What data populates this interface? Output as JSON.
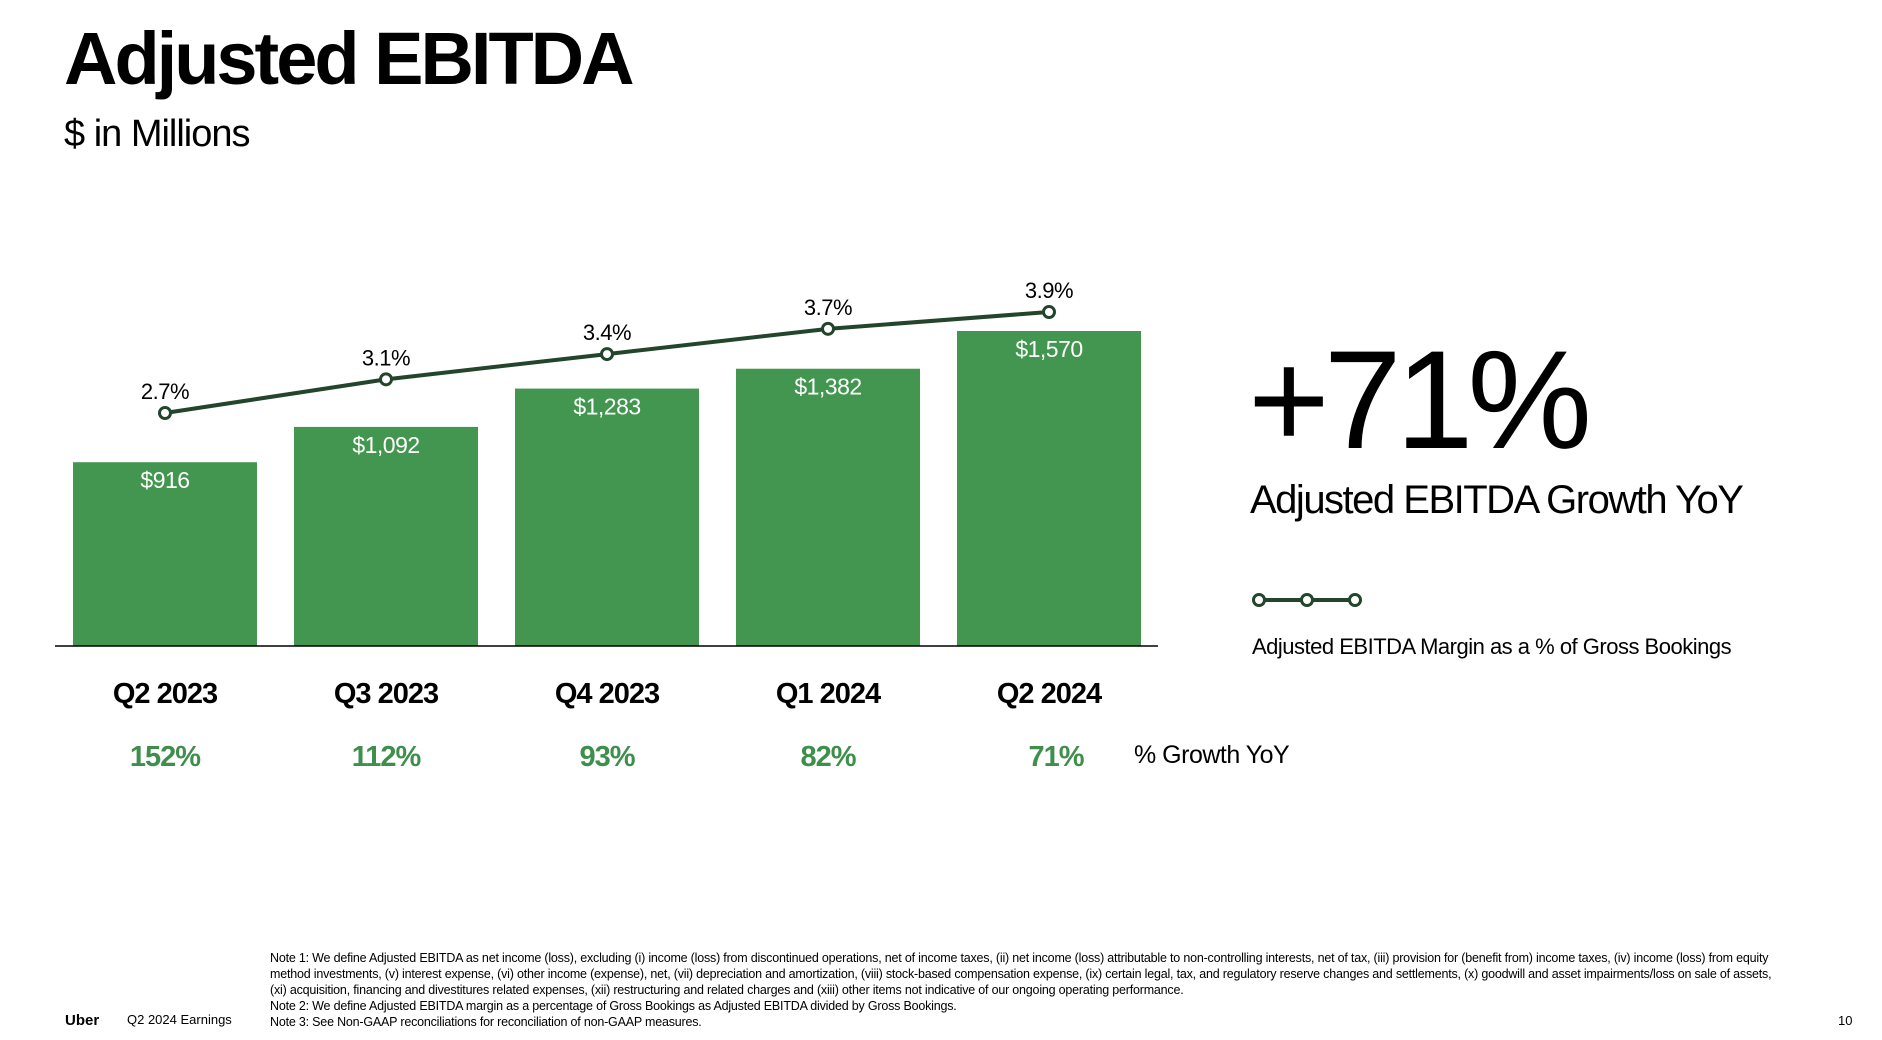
{
  "title": "Adjusted EBITDA",
  "subtitle": "$ in Millions",
  "highlight": {
    "value": "+71%",
    "label": "Adjusted EBITDA Growth YoY"
  },
  "legend": {
    "margin_label": "Adjusted EBITDA Margin as a % of Gross Bookings"
  },
  "growth_row_label": "% Growth YoY",
  "notes": [
    "Note 1: We define Adjusted EBITDA as net income (loss), excluding (i) income (loss) from discontinued operations, net of income taxes, (ii) net income (loss) attributable to non-controlling interests, net of tax, (iii) provision for (benefit from) income taxes, (iv) income (loss) from equity method investments, (v) interest expense, (vi) other income (expense), net, (vii) depreciation and amortization, (viii) stock-based compensation expense, (ix) certain legal, tax, and regulatory reserve changes and settlements, (x) goodwill and asset impairments/loss on sale of assets, (xi) acquisition, financing and divestitures related expenses, (xii) restructuring and related charges and (xiii) other items not indicative of our ongoing operating performance.",
    "Note 2: We define Adjusted EBITDA margin as a percentage of Gross Bookings as Adjusted EBITDA divided by Gross Bookings.",
    "Note 3: See Non-GAAP reconciliations for reconciliation of non-GAAP measures."
  ],
  "footer": {
    "brand": "Uber",
    "deck": "Q2 2024 Earnings",
    "page": "10"
  },
  "colors": {
    "bar": "#43964f",
    "line": "#23452b",
    "growth_text": "#3f8f4c"
  },
  "chart_data": {
    "type": "bar",
    "categories": [
      "Q2 2023",
      "Q3 2023",
      "Q4 2023",
      "Q1 2024",
      "Q2 2024"
    ],
    "values": [
      916,
      1092,
      1283,
      1382,
      1570
    ],
    "value_labels": [
      "$916",
      "$1,092",
      "$1,283",
      "$1,382",
      "$1,570"
    ],
    "margin_line": {
      "values": [
        2.7,
        3.1,
        3.4,
        3.7,
        3.9
      ],
      "labels": [
        "2.7%",
        "3.1%",
        "3.4%",
        "3.7%",
        "3.9%"
      ]
    },
    "growth_yoy": [
      "152%",
      "112%",
      "93%",
      "82%",
      "71%"
    ],
    "ylim": [
      0,
      1570
    ]
  }
}
